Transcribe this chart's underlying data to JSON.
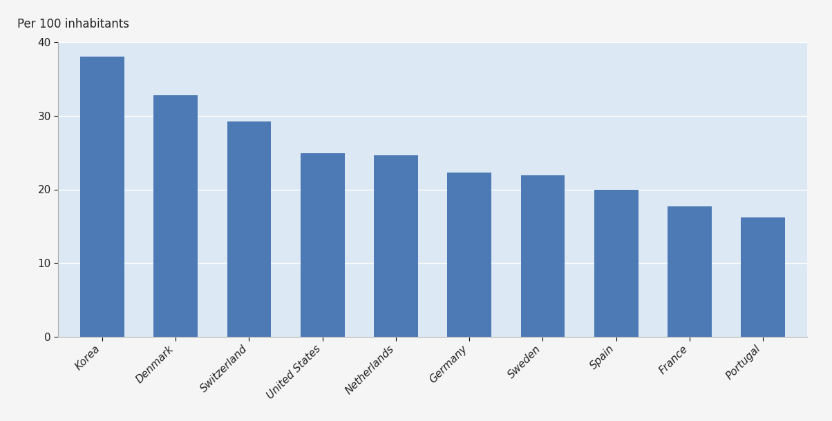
{
  "categories": [
    "Korea",
    "Denmark",
    "Switzerland",
    "United States",
    "Netherlands",
    "Germany",
    "Sweden",
    "Spain",
    "France",
    "Portugal"
  ],
  "values": [
    38.0,
    32.8,
    29.2,
    24.9,
    24.6,
    22.3,
    21.9,
    20.0,
    17.7,
    16.2
  ],
  "bar_color": "#4d7ab5",
  "plot_background": "#dce9f5",
  "outer_background": "#f5f5f5",
  "ylabel": "Per 100 inhabitants",
  "ylim": [
    0,
    40
  ],
  "yticks": [
    0,
    10,
    20,
    30,
    40
  ],
  "grid_color": "#ffffff",
  "tick_color": "#222222",
  "spine_color": "#aaaaaa",
  "ylabel_fontsize": 12,
  "tick_fontsize": 11,
  "bar_width": 0.6
}
